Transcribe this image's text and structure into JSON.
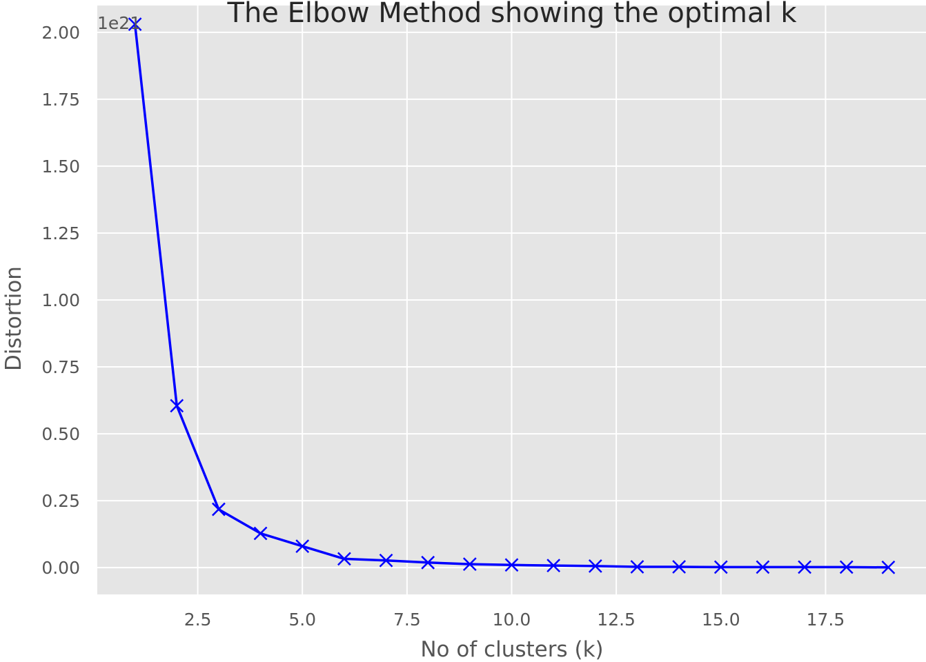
{
  "chart_data": {
    "type": "line",
    "title": "The Elbow Method showing the optimal k",
    "xlabel": "No of clusters (k)",
    "ylabel": "Distortion",
    "y_offset_label": "1e21",
    "xlim": [
      0.1,
      19.9
    ],
    "ylim": [
      -0.1,
      2.1
    ],
    "x_ticks": [
      2.5,
      5.0,
      7.5,
      10.0,
      12.5,
      15.0,
      17.5
    ],
    "x_tick_labels": [
      "2.5",
      "5.0",
      "7.5",
      "10.0",
      "12.5",
      "15.0",
      "17.5"
    ],
    "y_ticks": [
      0.0,
      0.25,
      0.5,
      0.75,
      1.0,
      1.25,
      1.5,
      1.75,
      2.0
    ],
    "y_tick_labels": [
      "0.00",
      "0.25",
      "0.50",
      "0.75",
      "1.00",
      "1.25",
      "1.50",
      "1.75",
      "2.00"
    ],
    "grid": true,
    "style": {
      "background": "#e5e5e5",
      "grid_color": "#ffffff",
      "line_color": "#0000ff",
      "marker": "x"
    },
    "x": [
      1,
      2,
      3,
      4,
      5,
      6,
      7,
      8,
      9,
      10,
      11,
      12,
      13,
      14,
      15,
      16,
      17,
      18,
      19
    ],
    "series": [
      {
        "values": [
          2.03,
          0.605,
          0.218,
          0.128,
          0.08,
          0.033,
          0.027,
          0.019,
          0.013,
          0.01,
          0.008,
          0.006,
          0.003,
          0.003,
          0.002,
          0.002,
          0.002,
          0.002,
          0.001
        ]
      }
    ]
  }
}
